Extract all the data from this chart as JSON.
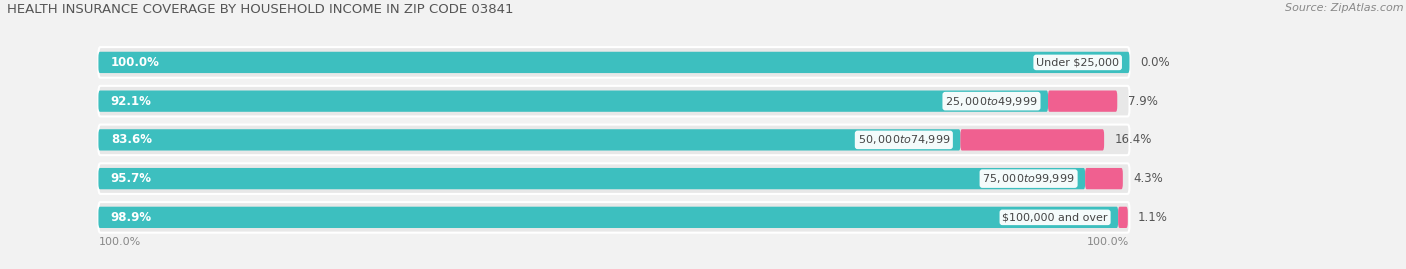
{
  "title": "HEALTH INSURANCE COVERAGE BY HOUSEHOLD INCOME IN ZIP CODE 03841",
  "source": "Source: ZipAtlas.com",
  "categories": [
    "Under $25,000",
    "$25,000 to $49,999",
    "$50,000 to $74,999",
    "$75,000 to $99,999",
    "$100,000 and over"
  ],
  "with_coverage": [
    100.0,
    92.1,
    83.6,
    95.7,
    98.9
  ],
  "without_coverage": [
    0.0,
    7.9,
    16.4,
    4.3,
    1.1
  ],
  "color_with": "#3dbfbf",
  "color_with_light": "#8fd8d8",
  "color_without": "#f06090",
  "color_without_light": "#f4a0b8",
  "bg_color": "#f2f2f2",
  "bar_bg_color": "#e0e0e0",
  "bar_row_bg": "#e8e8e8",
  "axis_label": "100.0%",
  "title_fontsize": 9.5,
  "source_fontsize": 8,
  "bar_label_fontsize": 8.5,
  "category_fontsize": 8,
  "tick_fontsize": 8,
  "xlim_max": 120,
  "bar_total": 100
}
